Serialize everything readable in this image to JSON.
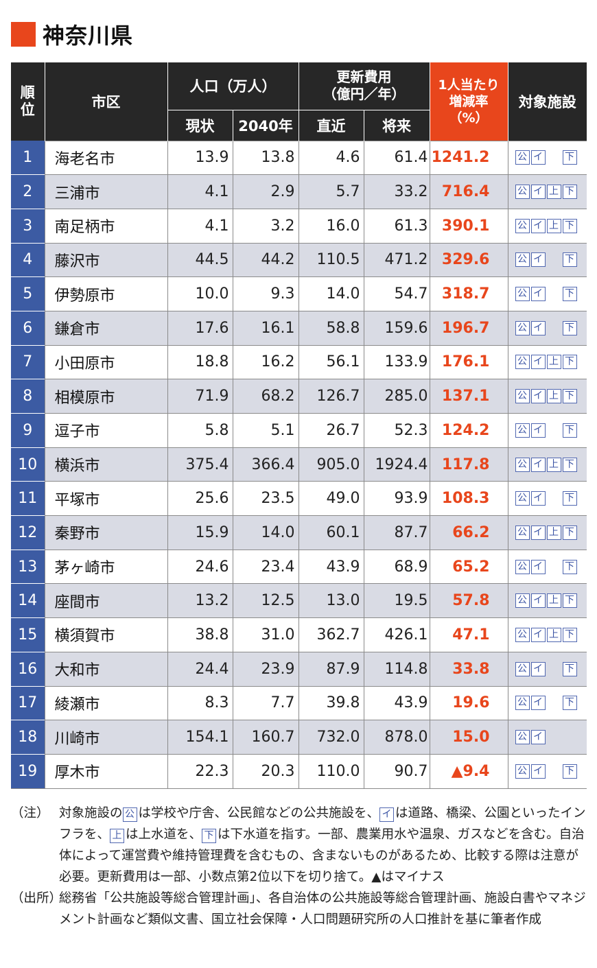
{
  "title": "神奈川県",
  "colors": {
    "accent": "#e8461c",
    "header_bg": "#272727",
    "rank_bg": "#3c5ba3",
    "alt_row_bg": "#d9dbe4",
    "badge": "#3c55a5"
  },
  "header": {
    "rank": "順\n位",
    "city": "市区",
    "population": "人口（万人）",
    "pop_current": "現状",
    "pop_2040": "2040年",
    "cost": "更新費用\n（億円／年）",
    "cost_recent": "直近",
    "cost_future": "将来",
    "rate": "1人当たり\n増減率\n（%）",
    "facilities": "対象施設"
  },
  "badges": {
    "public": "公",
    "infra": "イ",
    "water_supply": "上",
    "sewer": "下"
  },
  "rows": [
    {
      "rank": "1",
      "city": "海老名市",
      "pop_now": "13.9",
      "pop_2040": "13.8",
      "cost_recent": "4.6",
      "cost_future": "61.4",
      "rate": "1241.2",
      "fac": [
        true,
        true,
        false,
        true
      ]
    },
    {
      "rank": "2",
      "city": "三浦市",
      "pop_now": "4.1",
      "pop_2040": "2.9",
      "cost_recent": "5.7",
      "cost_future": "33.2",
      "rate": "716.4",
      "fac": [
        true,
        true,
        true,
        true
      ]
    },
    {
      "rank": "3",
      "city": "南足柄市",
      "pop_now": "4.1",
      "pop_2040": "3.2",
      "cost_recent": "16.0",
      "cost_future": "61.3",
      "rate": "390.1",
      "fac": [
        true,
        true,
        true,
        true
      ]
    },
    {
      "rank": "4",
      "city": "藤沢市",
      "pop_now": "44.5",
      "pop_2040": "44.2",
      "cost_recent": "110.5",
      "cost_future": "471.2",
      "rate": "329.6",
      "fac": [
        true,
        true,
        false,
        true
      ]
    },
    {
      "rank": "5",
      "city": "伊勢原市",
      "pop_now": "10.0",
      "pop_2040": "9.3",
      "cost_recent": "14.0",
      "cost_future": "54.7",
      "rate": "318.7",
      "fac": [
        true,
        true,
        false,
        true
      ]
    },
    {
      "rank": "6",
      "city": "鎌倉市",
      "pop_now": "17.6",
      "pop_2040": "16.1",
      "cost_recent": "58.8",
      "cost_future": "159.6",
      "rate": "196.7",
      "fac": [
        true,
        true,
        false,
        true
      ]
    },
    {
      "rank": "7",
      "city": "小田原市",
      "pop_now": "18.8",
      "pop_2040": "16.2",
      "cost_recent": "56.1",
      "cost_future": "133.9",
      "rate": "176.1",
      "fac": [
        true,
        true,
        true,
        true
      ]
    },
    {
      "rank": "8",
      "city": "相模原市",
      "pop_now": "71.9",
      "pop_2040": "68.2",
      "cost_recent": "126.7",
      "cost_future": "285.0",
      "rate": "137.1",
      "fac": [
        true,
        true,
        true,
        true
      ]
    },
    {
      "rank": "9",
      "city": "逗子市",
      "pop_now": "5.8",
      "pop_2040": "5.1",
      "cost_recent": "26.7",
      "cost_future": "52.3",
      "rate": "124.2",
      "fac": [
        true,
        true,
        false,
        true
      ]
    },
    {
      "rank": "10",
      "city": "横浜市",
      "pop_now": "375.4",
      "pop_2040": "366.4",
      "cost_recent": "905.0",
      "cost_future": "1924.4",
      "rate": "117.8",
      "fac": [
        true,
        true,
        true,
        true
      ]
    },
    {
      "rank": "11",
      "city": "平塚市",
      "pop_now": "25.6",
      "pop_2040": "23.5",
      "cost_recent": "49.0",
      "cost_future": "93.9",
      "rate": "108.3",
      "fac": [
        true,
        true,
        false,
        true
      ]
    },
    {
      "rank": "12",
      "city": "秦野市",
      "pop_now": "15.9",
      "pop_2040": "14.0",
      "cost_recent": "60.1",
      "cost_future": "87.7",
      "rate": "66.2",
      "fac": [
        true,
        true,
        true,
        true
      ]
    },
    {
      "rank": "13",
      "city": "茅ヶ崎市",
      "pop_now": "24.6",
      "pop_2040": "23.4",
      "cost_recent": "43.9",
      "cost_future": "68.9",
      "rate": "65.2",
      "fac": [
        true,
        true,
        false,
        true
      ]
    },
    {
      "rank": "14",
      "city": "座間市",
      "pop_now": "13.2",
      "pop_2040": "12.5",
      "cost_recent": "13.0",
      "cost_future": "19.5",
      "rate": "57.8",
      "fac": [
        true,
        true,
        true,
        true
      ]
    },
    {
      "rank": "15",
      "city": "横須賀市",
      "pop_now": "38.8",
      "pop_2040": "31.0",
      "cost_recent": "362.7",
      "cost_future": "426.1",
      "rate": "47.1",
      "fac": [
        true,
        true,
        true,
        true
      ]
    },
    {
      "rank": "16",
      "city": "大和市",
      "pop_now": "24.4",
      "pop_2040": "23.9",
      "cost_recent": "87.9",
      "cost_future": "114.8",
      "rate": "33.8",
      "fac": [
        true,
        true,
        false,
        true
      ]
    },
    {
      "rank": "17",
      "city": "綾瀬市",
      "pop_now": "8.3",
      "pop_2040": "7.7",
      "cost_recent": "39.8",
      "cost_future": "43.9",
      "rate": "19.6",
      "fac": [
        true,
        true,
        false,
        true
      ]
    },
    {
      "rank": "18",
      "city": "川崎市",
      "pop_now": "154.1",
      "pop_2040": "160.7",
      "cost_recent": "732.0",
      "cost_future": "878.0",
      "rate": "15.0",
      "fac": [
        true,
        true,
        false,
        false
      ]
    },
    {
      "rank": "19",
      "city": "厚木市",
      "pop_now": "22.3",
      "pop_2040": "20.3",
      "cost_recent": "110.0",
      "cost_future": "90.7",
      "rate": "▲9.4",
      "fac": [
        true,
        true,
        false,
        true
      ]
    }
  ],
  "notes": {
    "note_label": "（注）",
    "note_p1": "対象施設の",
    "note_p2": "は学校や庁舎、公民館などの公共施設を、",
    "note_p3": "は道路、橋梁、公園といったインフラを、",
    "note_p4": "は上水道を、",
    "note_p5": "は下水道を指す。一部、農業用水や温泉、ガスなどを含む。自治体によって運営費や維持管理費を含むもの、含まないものがあるため、比較する際は注意が必要。更新費用は一部、小数点第2位以下を切り捨て。▲はマイナス",
    "source_label": "（出所）",
    "source_text": "総務省「公共施設等総合管理計画」、各自治体の公共施設等総合管理計画、施設白書やマネジメント計画など類似文書、国立社会保障・人口問題研究所の人口推計を基に筆者作成"
  }
}
